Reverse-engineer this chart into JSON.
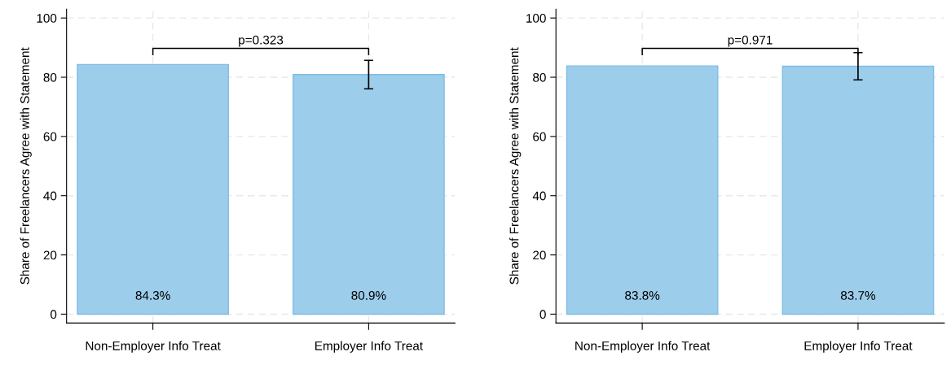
{
  "chart_data": [
    {
      "type": "bar",
      "ylabel": "Share of Freelancers Agree with Statement",
      "categories": [
        "Non-Employer Info Treat",
        "Employer Info Treat"
      ],
      "values": [
        84.3,
        80.9
      ],
      "errors": [
        null,
        4.8
      ],
      "value_labels": [
        "84.3%",
        "80.9%"
      ],
      "color": "#9ccdeb",
      "ylim": [
        -3,
        103
      ],
      "yticks": [
        0,
        20,
        40,
        60,
        80,
        100
      ],
      "grid": true,
      "annotations": [
        "p=0.323"
      ]
    },
    {
      "type": "bar",
      "ylabel": "Share of Freelancers Agree with Statement",
      "categories": [
        "Non-Employer Info Treat",
        "Employer Info Treat"
      ],
      "values": [
        83.8,
        83.7
      ],
      "errors": [
        null,
        4.6
      ],
      "value_labels": [
        "83.8%",
        "83.7%"
      ],
      "color": "#9ccdeb",
      "ylim": [
        -3,
        103
      ],
      "yticks": [
        0,
        20,
        40,
        60,
        80,
        100
      ],
      "grid": true,
      "annotations": [
        "p=0.971"
      ]
    }
  ]
}
